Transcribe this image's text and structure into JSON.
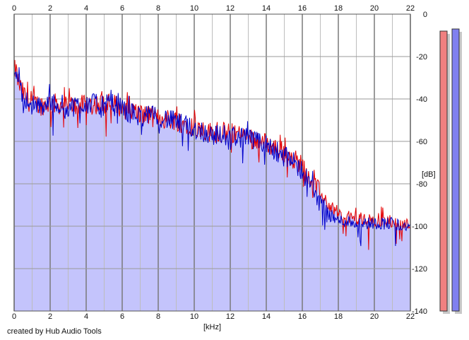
{
  "footer": {
    "credit": "created by Hub Audio Tools"
  },
  "colors": {
    "fill": "#c4c4fc",
    "left_channel": "#e60000",
    "right_channel": "#0000c8",
    "grid_major": "#7a7a7a",
    "grid_minor": "#bdbdbd",
    "meter_left": "#f08080",
    "meter_right": "#8080f0"
  },
  "chart_data": {
    "type": "area",
    "title": "",
    "xlabel": "[kHz]",
    "ylabel": "[dB]",
    "xlim": [
      0,
      22
    ],
    "ylim": [
      -140,
      0
    ],
    "x_ticks": [
      "0",
      "2",
      "4",
      "6",
      "8",
      "10",
      "12",
      "14",
      "16",
      "18",
      "20",
      "22"
    ],
    "y_ticks": [
      "0",
      "-20",
      "-40",
      "-60",
      "-80",
      "-100",
      "-120",
      "-140"
    ],
    "grid": true,
    "legend": "none",
    "series": [
      {
        "x": [
          0,
          0.1,
          0.2,
          0.4,
          0.8,
          1.5,
          2,
          3,
          4,
          5,
          5.8,
          6.2,
          7,
          8,
          9,
          10,
          11,
          12,
          13,
          14,
          14.5,
          15,
          15.5,
          16,
          16.5,
          17,
          17.5,
          18,
          18.5,
          19,
          20,
          21,
          22
        ],
        "values": [
          -26,
          -25,
          -30,
          -35,
          -40,
          -42,
          -41,
          -42,
          -42,
          -41,
          -42,
          -44,
          -46,
          -48,
          -49,
          -52,
          -55,
          -55,
          -57,
          -60,
          -62,
          -64,
          -67,
          -70,
          -77,
          -84,
          -90,
          -94,
          -95,
          -96,
          -97,
          -97,
          -99
        ]
      },
      {
        "x": [
          0,
          0.1,
          0.2,
          0.4,
          0.8,
          1.5,
          2,
          3,
          4,
          5,
          5.8,
          6.2,
          7,
          8,
          9,
          10,
          11,
          12,
          13,
          14,
          14.5,
          15,
          15.5,
          16,
          16.5,
          17,
          17.5,
          18,
          18.5,
          19,
          20,
          21,
          22
        ],
        "values": [
          -25,
          -24,
          -29,
          -36,
          -41,
          -43,
          -40,
          -43,
          -41,
          -42,
          -41,
          -45,
          -47,
          -47,
          -50,
          -53,
          -56,
          -56,
          -58,
          -61,
          -63,
          -66,
          -69,
          -73,
          -80,
          -88,
          -94,
          -97,
          -97,
          -98,
          -98,
          -98,
          -100
        ]
      }
    ]
  },
  "meters": {
    "left_peak_db": -8,
    "right_peak_db": -7
  }
}
